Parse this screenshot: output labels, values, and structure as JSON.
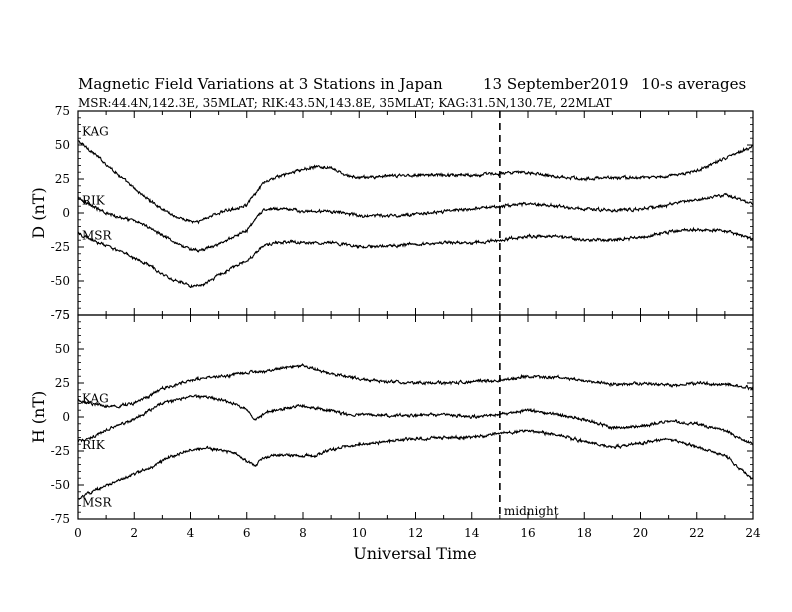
{
  "header": {
    "title": "Magnetic Field Variations at 3 Stations in Japan",
    "date": "13 September2019",
    "averaging": "10-s averages",
    "stations": "MSR:44.4N,142.3E, 35MLAT;  RIK:43.5N,143.8E, 35MLAT;  KAG:31.5N,130.7E, 22MLAT"
  },
  "chart_data": [
    {
      "type": "line",
      "panel": "D",
      "ylabel": "D (nT)",
      "ylim": [
        -75,
        75
      ],
      "yticks": [
        75,
        50,
        25,
        0,
        -25,
        -50,
        -75
      ],
      "xlabel": "Universal Time",
      "xlim": [
        0,
        24
      ],
      "xticks": [
        0,
        2,
        4,
        6,
        8,
        10,
        12,
        14,
        16,
        18,
        20,
        22,
        24
      ],
      "series": [
        {
          "name": "KAG",
          "x": [
            0,
            0.5,
            1,
            1.5,
            2,
            2.5,
            3,
            3.5,
            4,
            4.25,
            4.5,
            5,
            5.5,
            6,
            6.3,
            6.6,
            7,
            7.5,
            8,
            8.5,
            9,
            9.3,
            9.6,
            10,
            11,
            12,
            13,
            14,
            15,
            16,
            17,
            18,
            19,
            20,
            21,
            22,
            23,
            24
          ],
          "y": [
            53,
            45,
            36,
            27,
            18,
            10,
            3,
            -3,
            -6,
            -7,
            -4,
            0,
            3,
            6,
            14,
            22,
            26,
            29,
            32,
            34,
            33,
            30,
            27,
            26,
            27,
            28,
            28,
            28,
            29,
            30,
            27,
            25,
            26,
            26,
            27,
            31,
            40,
            49
          ]
        },
        {
          "name": "RIK",
          "x": [
            0,
            0.5,
            1,
            1.5,
            2,
            2.5,
            3,
            3.5,
            4,
            4.5,
            5,
            5.5,
            6,
            6.3,
            6.6,
            7,
            7.5,
            8,
            8.5,
            9,
            9.5,
            10,
            11,
            12,
            13,
            14,
            15,
            16,
            17,
            18,
            19,
            20,
            21,
            22,
            23,
            24
          ],
          "y": [
            12,
            5,
            0,
            -3,
            -6,
            -10,
            -16,
            -22,
            -27,
            -27,
            -23,
            -18,
            -13,
            -5,
            2,
            3,
            3,
            1,
            1,
            1,
            0,
            -2,
            -2,
            -1,
            1,
            3,
            5,
            7,
            5,
            3,
            2,
            3,
            6,
            10,
            13,
            7
          ]
        },
        {
          "name": "MSR",
          "x": [
            0,
            0.5,
            1,
            1.5,
            2,
            2.5,
            3,
            3.5,
            4,
            4.5,
            5,
            5.5,
            6,
            6.3,
            6.6,
            7,
            7.5,
            8,
            8.5,
            9,
            9.5,
            10,
            11,
            12,
            13,
            14,
            15,
            16,
            17,
            18,
            19,
            20,
            21,
            22,
            23,
            24
          ],
          "y": [
            -15,
            -20,
            -24,
            -28,
            -33,
            -38,
            -45,
            -50,
            -54,
            -52,
            -46,
            -40,
            -35,
            -30,
            -24,
            -22,
            -21,
            -22,
            -22,
            -22,
            -23,
            -25,
            -24,
            -23,
            -22,
            -22,
            -20,
            -17,
            -17,
            -20,
            -20,
            -18,
            -14,
            -12,
            -13,
            -19
          ]
        }
      ]
    },
    {
      "type": "line",
      "panel": "H",
      "ylabel": "H (nT)",
      "ylim": [
        -75,
        75
      ],
      "yticks": [
        75,
        50,
        25,
        0,
        -25,
        -50,
        -75
      ],
      "xlabel": "Universal Time",
      "xlim": [
        0,
        24
      ],
      "xticks": [
        0,
        2,
        4,
        6,
        8,
        10,
        12,
        14,
        16,
        18,
        20,
        22,
        24
      ],
      "annotation": {
        "x": 15,
        "label": "midnight"
      },
      "series": [
        {
          "name": "KAG",
          "x": [
            0,
            0.5,
            1,
            1.5,
            2,
            2.5,
            3,
            3.5,
            4,
            4.5,
            5,
            5.5,
            6,
            6.5,
            7,
            7.5,
            8,
            8.5,
            9,
            9.5,
            10,
            11,
            12,
            13,
            14,
            15,
            16,
            17,
            18,
            19,
            20,
            21,
            22,
            23,
            24
          ],
          "y": [
            12,
            10,
            8,
            8,
            10,
            15,
            21,
            24,
            27,
            29,
            30,
            31,
            33,
            33,
            35,
            37,
            38,
            35,
            32,
            30,
            28,
            26,
            25,
            25,
            26,
            27,
            30,
            29,
            27,
            24,
            25,
            23,
            25,
            24,
            21
          ]
        },
        {
          "name": "RIK",
          "x": [
            0,
            0.5,
            1,
            1.5,
            2,
            2.5,
            3,
            3.5,
            4,
            4.5,
            5,
            5.5,
            6,
            6.3,
            6.6,
            7,
            7.5,
            8,
            8.5,
            9,
            9.5,
            10,
            11,
            12,
            13,
            14,
            15,
            16,
            17,
            18,
            19,
            20,
            21,
            22,
            23,
            24
          ],
          "y": [
            -18,
            -15,
            -10,
            -5,
            -2,
            5,
            10,
            13,
            15,
            15,
            13,
            10,
            5,
            -2,
            2,
            5,
            7,
            8,
            6,
            5,
            2,
            2,
            1,
            1,
            2,
            0,
            2,
            5,
            2,
            -2,
            -8,
            -7,
            -3,
            -5,
            -10,
            -20
          ]
        },
        {
          "name": "MSR",
          "x": [
            0,
            0.5,
            1,
            1.5,
            2,
            2.5,
            3,
            3.5,
            4,
            4.5,
            5,
            5.5,
            6,
            6.3,
            6.6,
            7,
            7.5,
            8,
            8.5,
            9,
            9.5,
            10,
            11,
            12,
            13,
            14,
            15,
            16,
            17,
            18,
            19,
            20,
            21,
            22,
            23,
            24
          ],
          "y": [
            -60,
            -55,
            -50,
            -46,
            -42,
            -38,
            -32,
            -28,
            -24,
            -23,
            -24,
            -26,
            -32,
            -36,
            -30,
            -28,
            -28,
            -29,
            -28,
            -24,
            -22,
            -20,
            -18,
            -16,
            -15,
            -15,
            -12,
            -10,
            -13,
            -18,
            -22,
            -19,
            -16,
            -22,
            -28,
            -46
          ]
        }
      ]
    }
  ]
}
